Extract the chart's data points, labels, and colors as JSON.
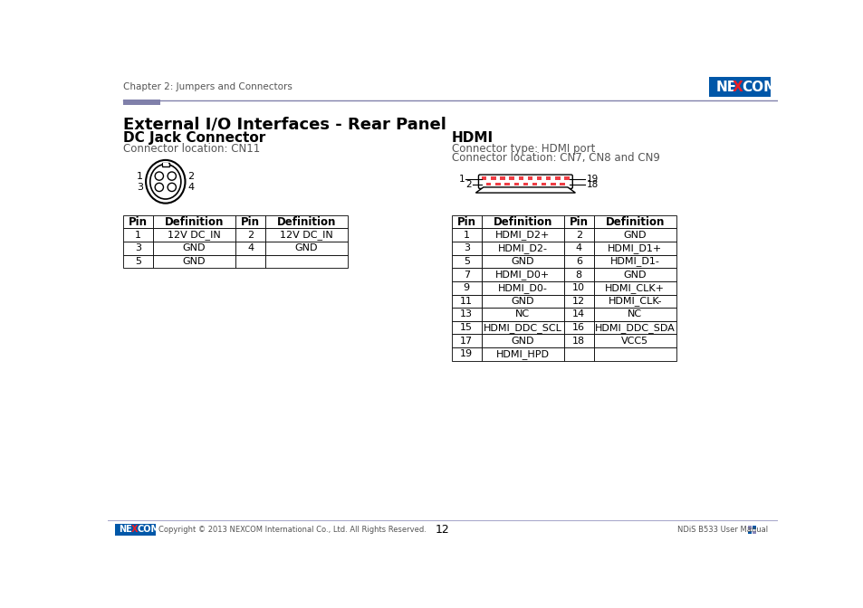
{
  "title_main": "External I/O Interfaces - Rear Panel",
  "section1_title": "DC Jack Connector",
  "section1_loc": "Connector location: CN11",
  "section2_title": "HDMI",
  "section2_type": "Connector type: HDMI port",
  "section2_loc": "Connector location: CN7, CN8 and CN9",
  "header_text": "Chapter 2: Jumpers and Connectors",
  "footer_text": "Copyright © 2013 NEXCOM International Co., Ltd. All Rights Reserved.",
  "footer_page": "12",
  "footer_right": "NDiS B533 User Manual",
  "dc_table_headers": [
    "Pin",
    "Definition",
    "Pin",
    "Definition"
  ],
  "dc_table_data": [
    [
      "1",
      "12V DC_IN",
      "2",
      "12V DC_IN"
    ],
    [
      "3",
      "GND",
      "4",
      "GND"
    ],
    [
      "5",
      "GND",
      "",
      ""
    ]
  ],
  "hdmi_table_headers": [
    "Pin",
    "Definition",
    "Pin",
    "Definition"
  ],
  "hdmi_table_data": [
    [
      "1",
      "HDMI_D2+",
      "2",
      "GND"
    ],
    [
      "3",
      "HDMI_D2-",
      "4",
      "HDMI_D1+"
    ],
    [
      "5",
      "GND",
      "6",
      "HDMI_D1-"
    ],
    [
      "7",
      "HDMI_D0+",
      "8",
      "GND"
    ],
    [
      "9",
      "HDMI_D0-",
      "10",
      "HDMI_CLK+"
    ],
    [
      "11",
      "GND",
      "12",
      "HDMI_CLK-"
    ],
    [
      "13",
      "NC",
      "14",
      "NC"
    ],
    [
      "15",
      "HDMI_DDC_SCL",
      "16",
      "HDMI_DDC_SDA"
    ],
    [
      "17",
      "GND",
      "18",
      "VCC5"
    ],
    [
      "19",
      "HDMI_HPD",
      "",
      ""
    ]
  ],
  "nexcom_blue": "#0057A8",
  "nexcom_red": "#ED1C24",
  "nexcom_green": "#00A650",
  "header_purple": "#8080AA",
  "bg_color": "#FFFFFF",
  "text_color": "#000000",
  "gray_text": "#555555"
}
